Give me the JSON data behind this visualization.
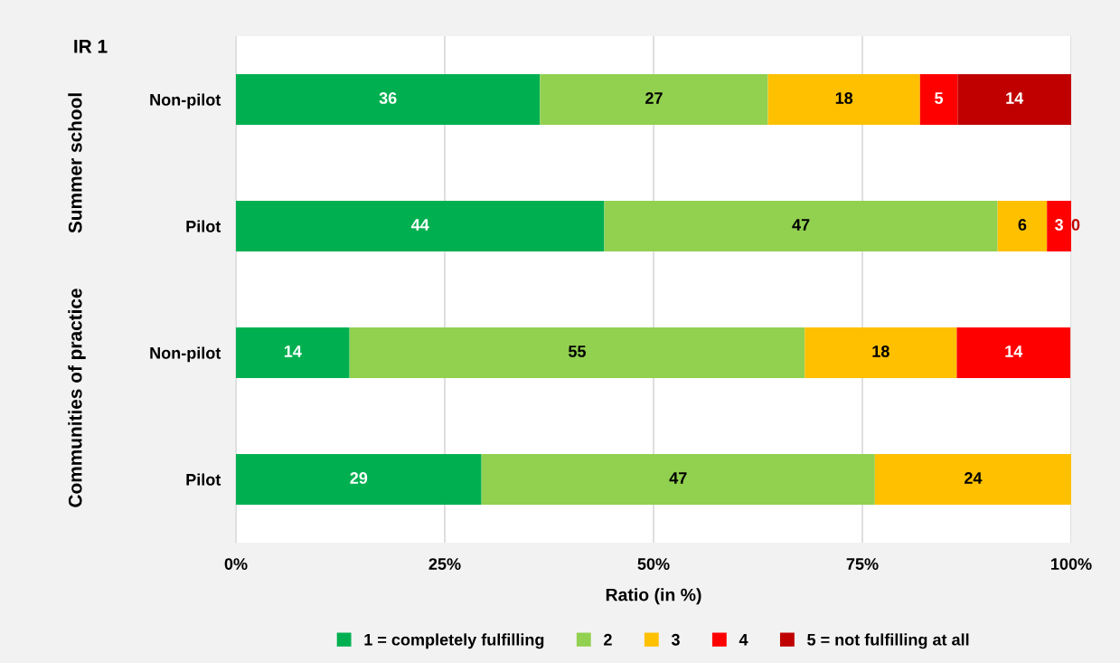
{
  "chart_data": {
    "type": "bar",
    "orientation": "horizontal",
    "stacked": true,
    "categories": [
      "Non-pilot",
      "Pilot",
      "Non-pilot",
      "Pilot"
    ],
    "series": [
      {
        "name": "1 = completely fulfilling",
        "color": "#00b050",
        "values": [
          36.4,
          44.1,
          13.6,
          29.4
        ],
        "value_labels": [
          "36",
          "44",
          "14",
          "29"
        ]
      },
      {
        "name": "2",
        "color": "#92d050",
        "values": [
          27.3,
          47.1,
          54.5,
          47.1
        ],
        "value_labels": [
          "27",
          "47",
          "55",
          "47"
        ]
      },
      {
        "name": "3",
        "color": "#ffc000",
        "values": [
          18.2,
          5.9,
          18.2,
          23.5
        ],
        "value_labels": [
          "18",
          "6",
          "18",
          "24"
        ]
      },
      {
        "name": "4",
        "color": "#ff0000",
        "values": [
          4.5,
          2.9,
          13.6,
          0
        ],
        "value_labels": [
          "5",
          "3",
          "14",
          null
        ]
      },
      {
        "name": "5 = not fulfilling at all",
        "color": "#c00000",
        "values": [
          13.6,
          0,
          0,
          0
        ],
        "value_labels": [
          "14",
          "0",
          null,
          null
        ]
      }
    ],
    "xlabel": "Ratio (in %)",
    "xlim": [
      0,
      100
    ],
    "xticks": [
      {
        "value": 0,
        "label": "0%"
      },
      {
        "value": 25,
        "label": "25%"
      },
      {
        "value": 50,
        "label": "50%"
      },
      {
        "value": 75,
        "label": "75%"
      },
      {
        "value": 100,
        "label": "100%"
      }
    ],
    "annotations": [
      "IR 1",
      "Summer school",
      "Communities of practice"
    ],
    "grid": "x",
    "legend": "bottom"
  }
}
